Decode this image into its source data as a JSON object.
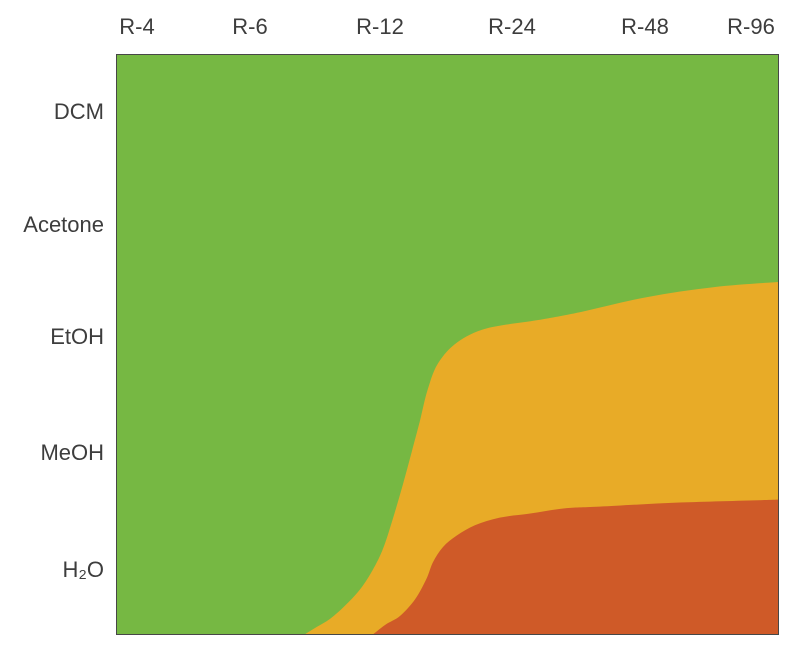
{
  "chart_data": {
    "type": "area",
    "title": "",
    "grid": false,
    "legend": false,
    "frame_color": "#474747",
    "x_axis": {
      "position": "top",
      "tick_labels": [
        "R-4",
        "R-6",
        "R-12",
        "R-24",
        "R-48",
        "R-96"
      ]
    },
    "y_axis": {
      "position": "left",
      "tick_labels": [
        "DCM",
        "Acetone",
        "EtOH",
        "MeOH",
        "H₂O"
      ]
    },
    "regions": [
      {
        "name": "green-region",
        "color": "#76b843"
      },
      {
        "name": "amber-region",
        "color": "#e8ab27"
      },
      {
        "name": "red-region",
        "color": "#cf5a28"
      }
    ],
    "boundaries": {
      "note": "points are fractions of plot area, x left-to-right, y top-to-bottom",
      "green_amber": [
        [
          0.285,
          1.0
        ],
        [
          0.302,
          0.988
        ],
        [
          0.322,
          0.974
        ],
        [
          0.344,
          0.952
        ],
        [
          0.367,
          0.924
        ],
        [
          0.385,
          0.893
        ],
        [
          0.402,
          0.854
        ],
        [
          0.417,
          0.802
        ],
        [
          0.432,
          0.744
        ],
        [
          0.446,
          0.685
        ],
        [
          0.458,
          0.633
        ],
        [
          0.47,
          0.578
        ],
        [
          0.486,
          0.532
        ],
        [
          0.515,
          0.496
        ],
        [
          0.56,
          0.472
        ],
        [
          0.636,
          0.458
        ],
        [
          0.701,
          0.444
        ],
        [
          0.802,
          0.418
        ],
        [
          0.902,
          0.401
        ],
        [
          1.0,
          0.392
        ]
      ],
      "amber_red": [
        [
          0.388,
          1.0
        ],
        [
          0.406,
          0.984
        ],
        [
          0.428,
          0.969
        ],
        [
          0.451,
          0.94
        ],
        [
          0.468,
          0.905
        ],
        [
          0.478,
          0.876
        ],
        [
          0.493,
          0.85
        ],
        [
          0.514,
          0.83
        ],
        [
          0.542,
          0.812
        ],
        [
          0.579,
          0.799
        ],
        [
          0.624,
          0.792
        ],
        [
          0.677,
          0.783
        ],
        [
          0.73,
          0.78
        ],
        [
          0.851,
          0.773
        ],
        [
          1.0,
          0.768
        ]
      ]
    }
  }
}
